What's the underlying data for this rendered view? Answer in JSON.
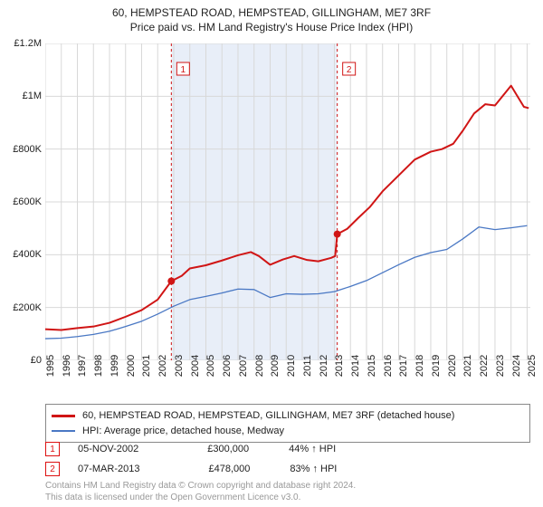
{
  "title_line1": "60, HEMPSTEAD ROAD, HEMPSTEAD, GILLINGHAM, ME7 3RF",
  "title_line2": "Price paid vs. HM Land Registry's House Price Index (HPI)",
  "chart": {
    "type": "line",
    "background_color": "#ffffff",
    "shaded_band": {
      "x_start": 2002.85,
      "x_end": 2013.18,
      "fill": "#e8eef8"
    },
    "xlim": [
      1995,
      2025.2
    ],
    "ylim": [
      0,
      1200000
    ],
    "y_ticks": [
      0,
      200000,
      400000,
      600000,
      800000,
      1000000,
      1200000
    ],
    "y_tick_labels": [
      "£0",
      "£200K",
      "£400K",
      "£600K",
      "£800K",
      "£1M",
      "£1.2M"
    ],
    "x_ticks": [
      1995,
      1996,
      1997,
      1998,
      1999,
      2000,
      2001,
      2002,
      2003,
      2004,
      2005,
      2006,
      2007,
      2008,
      2009,
      2010,
      2011,
      2012,
      2013,
      2014,
      2015,
      2016,
      2017,
      2018,
      2019,
      2020,
      2021,
      2022,
      2023,
      2024,
      2025
    ],
    "grid_color": "#d8d8d8",
    "grid_width": 1,
    "series_red": {
      "label": "60, HEMPSTEAD ROAD, HEMPSTEAD, GILLINGHAM, ME7 3RF (detached house)",
      "color": "#d01515",
      "width": 2,
      "points": [
        [
          1995,
          118000
        ],
        [
          1996,
          115000
        ],
        [
          1997,
          122000
        ],
        [
          1998,
          128000
        ],
        [
          1999,
          142000
        ],
        [
          2000,
          165000
        ],
        [
          2001,
          190000
        ],
        [
          2002,
          230000
        ],
        [
          2002.85,
          300000
        ],
        [
          2003.5,
          320000
        ],
        [
          2004,
          348000
        ],
        [
          2005,
          360000
        ],
        [
          2006,
          378000
        ],
        [
          2007,
          398000
        ],
        [
          2007.8,
          410000
        ],
        [
          2008.3,
          395000
        ],
        [
          2009,
          362000
        ],
        [
          2009.8,
          382000
        ],
        [
          2010.5,
          395000
        ],
        [
          2011.3,
          380000
        ],
        [
          2012,
          375000
        ],
        [
          2012.8,
          388000
        ],
        [
          2013.05,
          395000
        ],
        [
          2013.18,
          478000
        ],
        [
          2013.8,
          498000
        ],
        [
          2014.5,
          540000
        ],
        [
          2015.2,
          580000
        ],
        [
          2016,
          640000
        ],
        [
          2017,
          700000
        ],
        [
          2018,
          760000
        ],
        [
          2019,
          790000
        ],
        [
          2019.7,
          800000
        ],
        [
          2020.4,
          820000
        ],
        [
          2021,
          870000
        ],
        [
          2021.7,
          935000
        ],
        [
          2022.4,
          970000
        ],
        [
          2023,
          965000
        ],
        [
          2023.6,
          1010000
        ],
        [
          2024,
          1040000
        ],
        [
          2024.4,
          1000000
        ],
        [
          2024.8,
          960000
        ],
        [
          2025.1,
          955000
        ]
      ]
    },
    "series_blue": {
      "label": "HPI: Average price, detached house, Medway",
      "color": "#4a78c4",
      "width": 1.3,
      "points": [
        [
          1995,
          82000
        ],
        [
          1996,
          84000
        ],
        [
          1997,
          90000
        ],
        [
          1998,
          98000
        ],
        [
          1999,
          110000
        ],
        [
          2000,
          128000
        ],
        [
          2001,
          148000
        ],
        [
          2002,
          175000
        ],
        [
          2003,
          205000
        ],
        [
          2004,
          230000
        ],
        [
          2005,
          242000
        ],
        [
          2006,
          255000
        ],
        [
          2007,
          270000
        ],
        [
          2008,
          268000
        ],
        [
          2009,
          238000
        ],
        [
          2010,
          252000
        ],
        [
          2011,
          250000
        ],
        [
          2012,
          252000
        ],
        [
          2013,
          260000
        ],
        [
          2014,
          280000
        ],
        [
          2015,
          302000
        ],
        [
          2016,
          332000
        ],
        [
          2017,
          362000
        ],
        [
          2018,
          390000
        ],
        [
          2019,
          408000
        ],
        [
          2020,
          420000
        ],
        [
          2021,
          460000
        ],
        [
          2022,
          505000
        ],
        [
          2023,
          495000
        ],
        [
          2024,
          502000
        ],
        [
          2025,
          510000
        ]
      ]
    },
    "sale_markers": [
      {
        "n": "1",
        "x": 2002.85,
        "y": 300000,
        "line_color": "#d01515",
        "box_border": "#d01515",
        "text_color": "#d01515",
        "label_top": 0.06
      },
      {
        "n": "2",
        "x": 2013.18,
        "y": 478000,
        "line_color": "#d01515",
        "box_border": "#d01515",
        "text_color": "#d01515",
        "label_top": 0.06
      }
    ]
  },
  "legend": {
    "red_label": "60, HEMPSTEAD ROAD, HEMPSTEAD, GILLINGHAM, ME7 3RF (detached house)",
    "blue_label": "HPI: Average price, detached house, Medway",
    "red_color": "#d01515",
    "blue_color": "#4a78c4"
  },
  "sales": [
    {
      "n": "1",
      "date": "05-NOV-2002",
      "price": "£300,000",
      "pct": "44% ↑ HPI"
    },
    {
      "n": "2",
      "date": "07-MAR-2013",
      "price": "£478,000",
      "pct": "83% ↑ HPI"
    }
  ],
  "footnote_line1": "Contains HM Land Registry data © Crown copyright and database right 2024.",
  "footnote_line2": "This data is licensed under the Open Government Licence v3.0."
}
